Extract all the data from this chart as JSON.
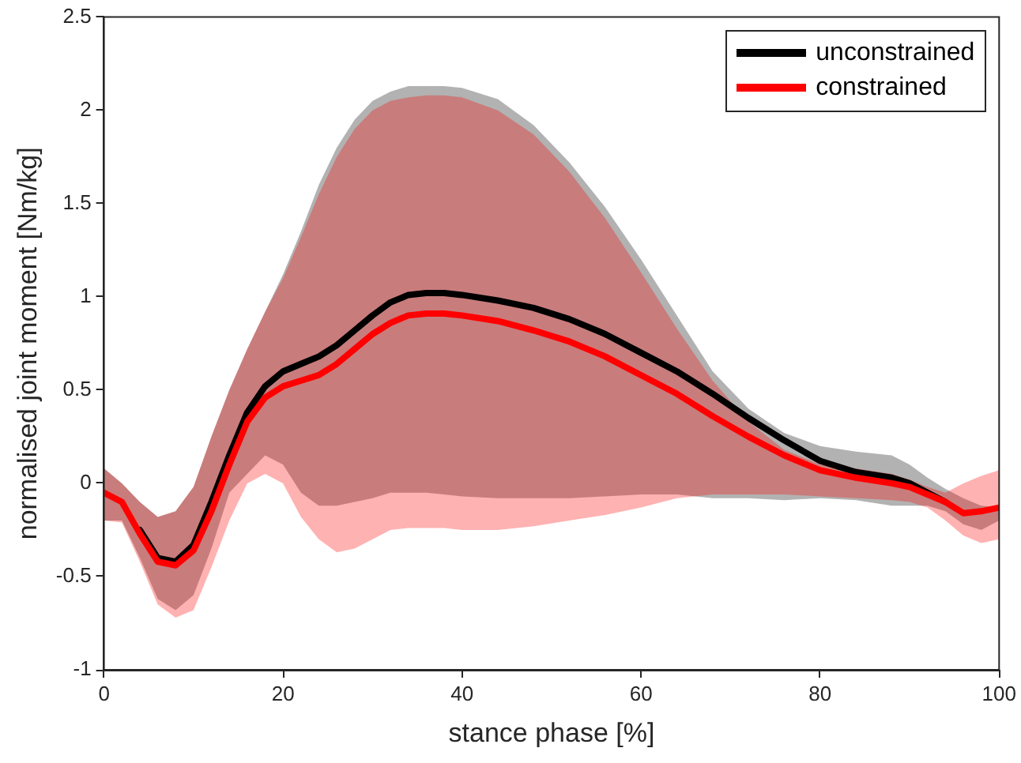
{
  "chart_data": {
    "type": "line",
    "xlabel": "stance phase [%]",
    "ylabel": "normalised joint moment [Nm/kg]",
    "x": [
      0,
      2,
      4,
      6,
      8,
      10,
      12,
      14,
      16,
      18,
      20,
      22,
      24,
      26,
      28,
      30,
      32,
      34,
      36,
      38,
      40,
      44,
      48,
      52,
      56,
      60,
      64,
      68,
      72,
      76,
      80,
      84,
      88,
      90,
      92,
      94,
      96,
      98,
      100
    ],
    "series": [
      {
        "name": "unconstrained",
        "color": "#000000",
        "values": [
          null,
          null,
          -0.25,
          -0.4,
          -0.42,
          -0.33,
          -0.1,
          0.15,
          0.38,
          0.52,
          0.6,
          0.64,
          0.68,
          0.74,
          0.82,
          0.9,
          0.97,
          1.01,
          1.02,
          1.02,
          1.01,
          0.98,
          0.94,
          0.88,
          0.8,
          0.7,
          0.6,
          0.48,
          0.35,
          0.23,
          0.12,
          0.06,
          0.03,
          0.0,
          -0.05,
          -0.1,
          null,
          null,
          null
        ],
        "upper": [
          0.08,
          0.0,
          -0.1,
          -0.18,
          -0.15,
          -0.02,
          0.25,
          0.5,
          0.72,
          0.92,
          1.12,
          1.35,
          1.6,
          1.8,
          1.95,
          2.05,
          2.1,
          2.13,
          2.13,
          2.13,
          2.12,
          2.06,
          1.92,
          1.72,
          1.48,
          1.2,
          0.9,
          0.6,
          0.4,
          0.27,
          0.2,
          0.17,
          0.15,
          0.1,
          0.03,
          -0.03,
          -0.08,
          -0.12,
          -0.13
        ],
        "lower": [
          -0.2,
          -0.2,
          -0.4,
          -0.62,
          -0.68,
          -0.6,
          -0.35,
          -0.05,
          0.05,
          0.15,
          0.1,
          -0.05,
          -0.12,
          -0.12,
          -0.1,
          -0.08,
          -0.05,
          -0.05,
          -0.05,
          -0.06,
          -0.07,
          -0.08,
          -0.08,
          -0.08,
          -0.07,
          -0.06,
          -0.06,
          -0.08,
          -0.08,
          -0.09,
          -0.08,
          -0.09,
          -0.12,
          -0.12,
          -0.12,
          -0.15,
          -0.22,
          -0.25,
          -0.2
        ]
      },
      {
        "name": "constrained",
        "color": "#ff0000",
        "values": [
          -0.05,
          -0.1,
          -0.27,
          -0.42,
          -0.44,
          -0.36,
          -0.15,
          0.1,
          0.33,
          0.46,
          0.52,
          0.55,
          0.58,
          0.64,
          0.72,
          0.8,
          0.86,
          0.9,
          0.91,
          0.91,
          0.9,
          0.87,
          0.82,
          0.76,
          0.68,
          0.58,
          0.48,
          0.36,
          0.25,
          0.15,
          0.07,
          0.03,
          0.0,
          -0.02,
          -0.06,
          -0.1,
          -0.16,
          -0.15,
          -0.13
        ],
        "upper": [
          0.08,
          0.0,
          -0.1,
          -0.18,
          -0.15,
          -0.02,
          0.25,
          0.5,
          0.72,
          0.92,
          1.1,
          1.32,
          1.55,
          1.75,
          1.9,
          2.0,
          2.05,
          2.07,
          2.08,
          2.08,
          2.07,
          2.0,
          1.87,
          1.67,
          1.42,
          1.13,
          0.83,
          0.55,
          0.33,
          0.18,
          0.1,
          0.08,
          0.05,
          0.02,
          -0.02,
          -0.05,
          0.0,
          0.04,
          0.07
        ],
        "lower": [
          -0.2,
          -0.21,
          -0.42,
          -0.65,
          -0.72,
          -0.68,
          -0.45,
          -0.2,
          0.0,
          0.05,
          0.0,
          -0.18,
          -0.3,
          -0.37,
          -0.35,
          -0.3,
          -0.25,
          -0.24,
          -0.24,
          -0.24,
          -0.25,
          -0.25,
          -0.23,
          -0.2,
          -0.17,
          -0.13,
          -0.08,
          -0.06,
          -0.06,
          -0.06,
          -0.07,
          -0.08,
          -0.09,
          -0.1,
          -0.13,
          -0.2,
          -0.28,
          -0.32,
          -0.3
        ]
      }
    ],
    "xlim": [
      0,
      100
    ],
    "xticks": [
      0,
      20,
      40,
      60,
      80,
      100
    ],
    "ylim": [
      -1,
      2.5
    ],
    "yticks": [
      -1,
      -0.5,
      0,
      0.5,
      1,
      1.5,
      2,
      2.5
    ],
    "grid": false,
    "legend": "top right",
    "marker": "none",
    "line_style": "solid"
  }
}
